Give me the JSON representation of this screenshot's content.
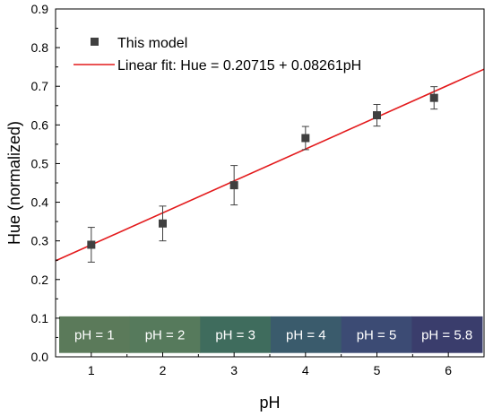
{
  "chart_data": {
    "type": "scatter",
    "xlabel": "pH",
    "ylabel": "Hue (normalized)",
    "xlim": [
      0.5,
      6.5
    ],
    "ylim": [
      0.0,
      0.9
    ],
    "x_ticks": [
      1,
      2,
      3,
      4,
      5,
      6
    ],
    "y_ticks": [
      0.0,
      0.1,
      0.2,
      0.3,
      0.4,
      0.5,
      0.6,
      0.7,
      0.8,
      0.9
    ],
    "series": [
      {
        "name": "This model",
        "marker": "square",
        "color": "#404040",
        "points": [
          {
            "x": 1,
            "y": 0.29,
            "err": 0.045
          },
          {
            "x": 2,
            "y": 0.345,
            "err": 0.045
          },
          {
            "x": 3,
            "y": 0.444,
            "err": 0.051
          },
          {
            "x": 4,
            "y": 0.566,
            "err": 0.03
          },
          {
            "x": 5,
            "y": 0.625,
            "err": 0.028
          },
          {
            "x": 5.8,
            "y": 0.67,
            "err": 0.029
          }
        ]
      }
    ],
    "fit": {
      "name": "Linear fit: Hue = 0.20715 + 0.08261pH",
      "intercept": 0.20715,
      "slope": 0.08261,
      "color": "#e31a1c"
    },
    "legend_position": "top-left",
    "color_swatches": [
      {
        "label": "pH = 1",
        "color": "#5b7a5a"
      },
      {
        "label": "pH = 2",
        "color": "#567a5c"
      },
      {
        "label": "pH = 3",
        "color": "#3f6c5d"
      },
      {
        "label": "pH = 4",
        "color": "#3a5b6c"
      },
      {
        "label": "pH = 5",
        "color": "#3c4b74"
      },
      {
        "label": "pH = 5.8",
        "color": "#3a3d6c"
      }
    ]
  }
}
